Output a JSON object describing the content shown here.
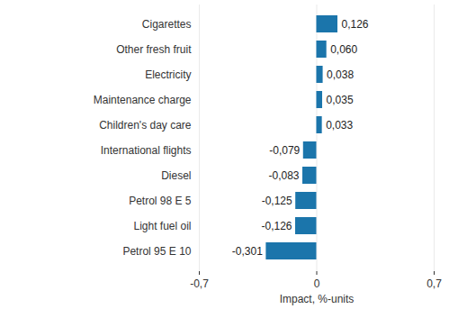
{
  "chart_data": {
    "type": "bar",
    "orientation": "horizontal",
    "categories": [
      "Cigarettes",
      "Other fresh fruit",
      "Electricity",
      "Maintenance charge",
      "Children's day care",
      "International flights",
      "Diesel",
      "Petrol 98 E 5",
      "Light fuel oil",
      "Petrol 95 E 10"
    ],
    "values": [
      0.126,
      0.06,
      0.038,
      0.035,
      0.033,
      -0.079,
      -0.083,
      -0.125,
      -0.126,
      -0.301
    ],
    "value_labels": [
      "0,126",
      "0,060",
      "0,038",
      "0,035",
      "0,033",
      "-0,079",
      "-0,083",
      "-0,125",
      "-0,126",
      "-0,301"
    ],
    "data_labels": true,
    "color": "#1b75ab",
    "xlabel": "Impact, %-units",
    "xlim": [
      -0.7,
      0.7
    ],
    "xticks": [
      {
        "value": -0.7,
        "label": "-0,7"
      },
      0,
      {
        "value": 0.7,
        "label": "0,7"
      }
    ],
    "grid": true
  }
}
